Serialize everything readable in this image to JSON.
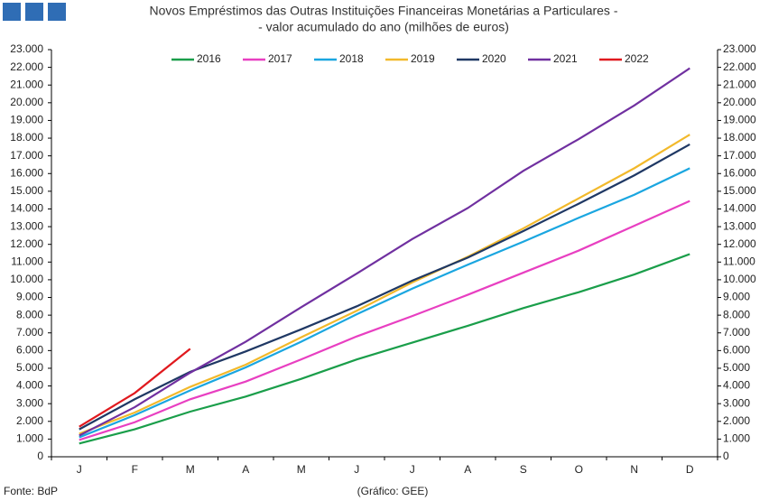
{
  "chart_data": {
    "type": "line",
    "title": "Novos Empréstimos das Outras Instituições Financeiras Monetárias a Particulares -",
    "subtitle": "- valor acumulado do ano (milhões de euros)",
    "source": "Fonte: BdP",
    "credit": "(Gráfico: GEE)",
    "categories": [
      "J",
      "F",
      "M",
      "A",
      "M",
      "J",
      "J",
      "A",
      "S",
      "O",
      "N",
      "D"
    ],
    "ylim": [
      0,
      23000
    ],
    "yticks": [
      0,
      {
        "value": 1000,
        "label": "1.000"
      },
      {
        "value": 2000,
        "label": "2.000"
      },
      {
        "value": 3000,
        "label": "3.000"
      },
      {
        "value": 4000,
        "label": "4.000"
      },
      {
        "value": 5000,
        "label": "5.000"
      },
      {
        "value": 6000,
        "label": "6.000"
      },
      {
        "value": 7000,
        "label": "7.000"
      },
      {
        "value": 8000,
        "label": "8.000"
      },
      {
        "value": 9000,
        "label": "9.000"
      },
      {
        "value": 10000,
        "label": "10.000"
      },
      {
        "value": 11000,
        "label": "11.000"
      },
      {
        "value": 12000,
        "label": "12.000"
      },
      {
        "value": 13000,
        "label": "13.000"
      },
      {
        "value": 14000,
        "label": "14.000"
      },
      {
        "value": 15000,
        "label": "15.000"
      },
      {
        "value": 16000,
        "label": "16.000"
      },
      {
        "value": 17000,
        "label": "17.000"
      },
      {
        "value": 18000,
        "label": "18.000"
      },
      {
        "value": 19000,
        "label": "19.000"
      },
      {
        "value": 20000,
        "label": "20.000"
      },
      {
        "value": 21000,
        "label": "21.000"
      },
      {
        "value": 22000,
        "label": "22.000"
      },
      {
        "value": 23000,
        "label": "23.000"
      }
    ],
    "y2lim": [
      0,
      23000
    ],
    "y2ticks": [
      0,
      {
        "value": 1000,
        "label": "1.000"
      },
      {
        "value": 2000,
        "label": "2.000"
      },
      {
        "value": 3000,
        "label": "3.000"
      },
      {
        "value": 4000,
        "label": "4.000"
      },
      {
        "value": 5000,
        "label": "5.000"
      },
      {
        "value": 6000,
        "label": "6.000"
      },
      {
        "value": 7000,
        "label": "7.000"
      },
      {
        "value": 8000,
        "label": "8.000"
      },
      {
        "value": 9000,
        "label": "9.000"
      },
      {
        "value": 10000,
        "label": "10.000"
      },
      {
        "value": 11000,
        "label": "11.000"
      },
      {
        "value": 12000,
        "label": "12.000"
      },
      {
        "value": 13000,
        "label": "13.000"
      },
      {
        "value": 14000,
        "label": "14.000"
      },
      {
        "value": 15000,
        "label": "15.000"
      },
      {
        "value": 16000,
        "label": "16.000"
      },
      {
        "value": 17000,
        "label": "17.000"
      },
      {
        "value": 18000,
        "label": "18.000"
      },
      {
        "value": 19000,
        "label": "19.000"
      },
      {
        "value": 20000,
        "label": "20.000"
      },
      {
        "value": 21000,
        "label": "21.000"
      },
      {
        "value": 22000,
        "label": "22.000"
      },
      {
        "value": 23000,
        "label": "23.000"
      }
    ],
    "grid": false,
    "legend": "top",
    "series": [
      {
        "name": "2016",
        "color": "#1a9e4a",
        "values": [
          750,
          1550,
          2550,
          3400,
          4400,
          5500,
          6450,
          7400,
          8400,
          9300,
          10300,
          11450
        ]
      },
      {
        "name": "2017",
        "color": "#e83fc1",
        "values": [
          950,
          1950,
          3250,
          4250,
          5500,
          6800,
          7950,
          9150,
          10400,
          11650,
          13050,
          14450
        ]
      },
      {
        "name": "2018",
        "color": "#1aa6e0",
        "values": [
          1100,
          2350,
          3750,
          5050,
          6500,
          8050,
          9500,
          10850,
          12150,
          13500,
          14800,
          16300
        ]
      },
      {
        "name": "2019",
        "color": "#f2b92b",
        "values": [
          1300,
          2500,
          3950,
          5200,
          6750,
          8250,
          9850,
          11300,
          12900,
          14600,
          16300,
          18200
        ]
      },
      {
        "name": "2020",
        "color": "#1f3864",
        "values": [
          1550,
          3250,
          4800,
          5950,
          7200,
          8500,
          9950,
          11250,
          12750,
          14300,
          15900,
          17650
        ]
      },
      {
        "name": "2021",
        "color": "#7030a0",
        "values": [
          1200,
          2800,
          4750,
          6500,
          8450,
          10350,
          12300,
          14050,
          16150,
          17950,
          19850,
          21950
        ]
      },
      {
        "name": "2022",
        "color": "#e0191e",
        "values": [
          1700,
          3600,
          6100,
          null,
          null,
          null,
          null,
          null,
          null,
          null,
          null,
          null
        ]
      }
    ]
  }
}
